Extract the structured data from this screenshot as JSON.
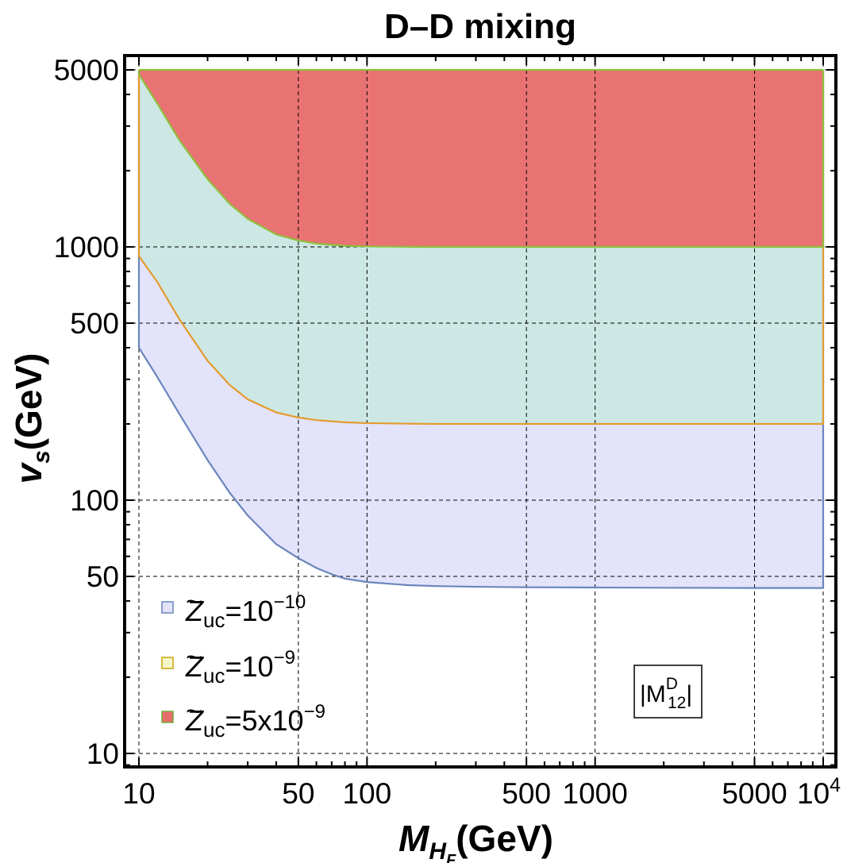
{
  "chart_data": {
    "type": "area",
    "title": "D–D mixing",
    "xlabel_main": "M",
    "xlabel_sub": "H",
    "xlabel_subsub": "F",
    "xlabel_unit": "(GeV)",
    "ylabel_main": "v",
    "ylabel_sub": "s",
    "ylabel_unit": "(GeV)",
    "xscale": "log",
    "yscale": "log",
    "xlim": [
      10,
      10000
    ],
    "ylim": [
      9,
      5500
    ],
    "grid": true,
    "x_ticks": [
      {
        "value": 10,
        "label": "10"
      },
      {
        "value": 50,
        "label": "50"
      },
      {
        "value": 100,
        "label": "100"
      },
      {
        "value": 500,
        "label": "500"
      },
      {
        "value": 1000,
        "label": "1000"
      },
      {
        "value": 5000,
        "label": "5000"
      }
    ],
    "x_tick_last": {
      "value": 10000,
      "base": "10",
      "exp": "4"
    },
    "y_ticks": [
      {
        "value": 10,
        "label": "10"
      },
      {
        "value": 50,
        "label": "50"
      },
      {
        "value": 100,
        "label": "100"
      },
      {
        "value": 500,
        "label": "500"
      },
      {
        "value": 1000,
        "label": "1000"
      },
      {
        "value": 5000,
        "label": "5000"
      }
    ],
    "region_top": 5000,
    "series": [
      {
        "name": "Z_uc=10^-10",
        "label_main": "Z",
        "label_sub": "uc",
        "label_eq": "=10",
        "label_exp": "−10",
        "fill": "#e3e3fb",
        "stroke": "#6a86bc",
        "boundary": {
          "x": [
            10,
            12,
            15,
            20,
            25,
            30,
            40,
            50,
            60,
            70,
            80,
            100,
            150,
            200,
            300,
            500,
            1000,
            2000,
            5000,
            10000
          ],
          "y": [
            400,
            308,
            220,
            144,
            107,
            87,
            67,
            59,
            54,
            51,
            49,
            47.5,
            46.2,
            45.8,
            45.5,
            45.3,
            45.2,
            45.1,
            45.0,
            45.0
          ]
        }
      },
      {
        "name": "Z_uc=10^-9",
        "label_main": "Z",
        "label_sub": "uc",
        "label_eq": "=10",
        "label_exp": "−9",
        "fill": "#cde8e4",
        "stroke": "#e49b2e",
        "boundary": {
          "x": [
            10,
            12,
            15,
            20,
            25,
            30,
            40,
            50,
            60,
            80,
            100,
            150,
            200,
            300,
            500,
            1000,
            2000,
            5000,
            10000
          ],
          "y": [
            920,
            730,
            520,
            355,
            285,
            250,
            222,
            212,
            207,
            203,
            201.5,
            200.5,
            200,
            200,
            200,
            200,
            200,
            200,
            200
          ]
        }
      },
      {
        "name": "Z_uc=5x10^-9",
        "label_main": "Z",
        "label_sub": "uc",
        "label_eq": "=5x10",
        "label_exp": "−9",
        "fill": "#e97373",
        "stroke": "#8fbf3c",
        "boundary": {
          "x": [
            10,
            12,
            15,
            20,
            25,
            30,
            40,
            50,
            60,
            80,
            100,
            150,
            200,
            300,
            500,
            1000,
            2000,
            5000,
            10000
          ],
          "y": [
            4800,
            3700,
            2650,
            1850,
            1480,
            1290,
            1120,
            1060,
            1030,
            1010,
            1004,
            1001,
            1000,
            1000,
            1000,
            1000,
            1000,
            1000,
            1000
          ]
        }
      }
    ],
    "legend_position": "bottom-left",
    "annotation": {
      "main": "|M",
      "sup": "D",
      "sub": "12",
      "close": "|"
    }
  }
}
